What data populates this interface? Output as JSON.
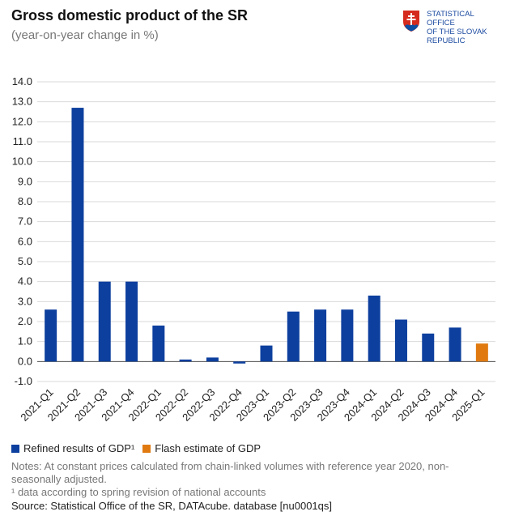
{
  "header": {
    "title": "Gross domestic product of the SR",
    "subtitle": "(year-on-year change in %)"
  },
  "logo": {
    "lines": [
      "STATISTICAL",
      "OFFICE",
      "OF THE SLOVAK",
      "REPUBLIC"
    ]
  },
  "colors": {
    "refined": "#0d3f9e",
    "flash": "#e07a10",
    "grid": "#d9d9d9",
    "logo_text": "#1b4aa0"
  },
  "chart_data": {
    "type": "bar",
    "categories": [
      "2021-Q1",
      "2021-Q2",
      "2021-Q3",
      "2021-Q4",
      "2022-Q1",
      "2022-Q2",
      "2022-Q3",
      "2022-Q4",
      "2023-Q1",
      "2023-Q2",
      "2023-Q3",
      "2023-Q4",
      "2024-Q1",
      "2024-Q2",
      "2024-Q3",
      "2024-Q4",
      "2025-Q1"
    ],
    "series": [
      {
        "name": "Refined results of GDP¹",
        "color": "#0d3f9e",
        "values": [
          2.6,
          12.7,
          4.0,
          4.0,
          1.8,
          0.1,
          0.2,
          -0.1,
          0.8,
          2.5,
          2.6,
          2.6,
          3.3,
          2.1,
          1.4,
          1.7,
          null
        ]
      },
      {
        "name": "Flash estimate of GDP",
        "color": "#e07a10",
        "values": [
          null,
          null,
          null,
          null,
          null,
          null,
          null,
          null,
          null,
          null,
          null,
          null,
          null,
          null,
          null,
          null,
          0.9
        ]
      }
    ],
    "title": "Gross domestic product of the SR",
    "subtitle": "(year-on-year change in %)",
    "ylim": [
      -1.0,
      14.0
    ],
    "ytick_step": 1.0,
    "yticks": [
      "-1.0",
      "0.0",
      "1.0",
      "2.0",
      "3.0",
      "4.0",
      "5.0",
      "6.0",
      "7.0",
      "8.0",
      "9.0",
      "10.0",
      "11.0",
      "12.0",
      "13.0",
      "14.0"
    ],
    "grid": true,
    "legend_placement": "bottom-left"
  },
  "legend": {
    "refined_label": "Refined results of GDP¹",
    "flash_label": "Flash estimate of GDP"
  },
  "notes": {
    "line1": "Notes: At constant prices calculated from chain-linked volumes with reference year 2020, non-seasonally adjusted.",
    "line2": "¹ data according to spring revision of national accounts"
  },
  "source": "Source: Statistical Office of the SR, DATAcube. database [nu0001qs]"
}
